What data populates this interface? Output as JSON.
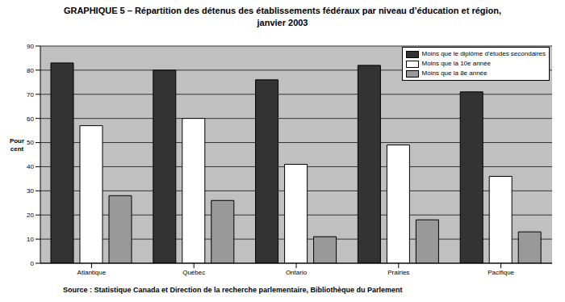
{
  "chart_data": {
    "type": "bar",
    "title": "GRAPHIQUE 5 – Répartition des détenus des établissements fédéraux par niveau d’éducation et région, janvier 2003",
    "y_label": "Pour cent",
    "source": "Source : Statistique Canada et Direction de la recherche parlementaire, Bibliothèque du Parlement",
    "categories": [
      "Atlantique",
      "Québec",
      "Ontario",
      "Prairies",
      "Pacifique"
    ],
    "series": [
      {
        "name": "Moins que le diplôme d’études secondaires",
        "color": "#333333",
        "values": [
          83,
          80,
          76,
          82,
          71
        ]
      },
      {
        "name": "Moins que la 10e année",
        "color": "#ffffff",
        "values": [
          57,
          60,
          41,
          49,
          36
        ]
      },
      {
        "name": "Moins que la 8e année",
        "color": "#999999",
        "values": [
          28,
          26,
          11,
          18,
          13
        ]
      }
    ],
    "ylim": [
      0,
      90
    ],
    "yticks": [
      0,
      10,
      20,
      30,
      40,
      50,
      60,
      70,
      80,
      90
    ],
    "grid": true,
    "legend": "upper right"
  }
}
